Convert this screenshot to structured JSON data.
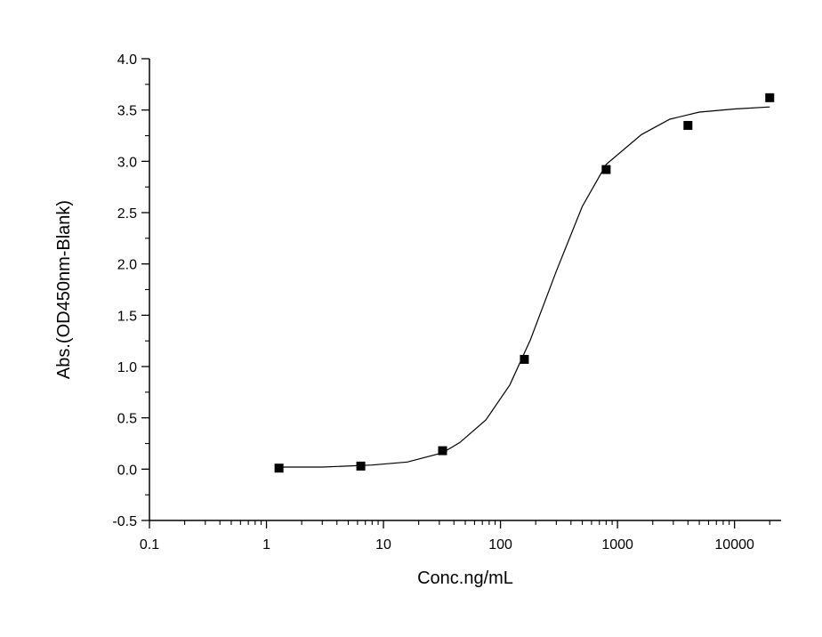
{
  "chart_data": {
    "type": "scatter",
    "xlabel": "Conc.ng/mL",
    "ylabel": "Abs.(OD450nm-Blank)",
    "x_scale": "log",
    "xlim": [
      0.1,
      25000
    ],
    "ylim": [
      -0.5,
      4.0
    ],
    "x_ticks": [
      0.1,
      1,
      10,
      100,
      1000,
      10000
    ],
    "x_tick_labels": [
      "0.1",
      "1",
      "10",
      "100",
      "1000",
      "10000"
    ],
    "y_ticks": [
      -0.5,
      0.0,
      0.5,
      1.0,
      1.5,
      2.0,
      2.5,
      3.0,
      3.5,
      4.0
    ],
    "y_tick_labels": [
      "-0.5",
      "0.0",
      "0.5",
      "1.0",
      "1.5",
      "2.0",
      "2.5",
      "3.0",
      "3.5",
      "4.0"
    ],
    "grid": false,
    "legend": "none",
    "series": [
      {
        "marker": "square",
        "color": "#000000",
        "points": [
          {
            "x": 1.28,
            "y": 0.01
          },
          {
            "x": 6.4,
            "y": 0.03
          },
          {
            "x": 32,
            "y": 0.18
          },
          {
            "x": 160,
            "y": 1.07
          },
          {
            "x": 800,
            "y": 2.92
          },
          {
            "x": 4000,
            "y": 3.35
          },
          {
            "x": 20000,
            "y": 3.62
          }
        ]
      },
      {
        "kind": "fit-line",
        "color": "#000000",
        "points": [
          {
            "x": 1.28,
            "y": 0.02
          },
          {
            "x": 3,
            "y": 0.02
          },
          {
            "x": 8,
            "y": 0.04
          },
          {
            "x": 16,
            "y": 0.07
          },
          {
            "x": 32,
            "y": 0.16
          },
          {
            "x": 45,
            "y": 0.26
          },
          {
            "x": 75,
            "y": 0.48
          },
          {
            "x": 120,
            "y": 0.82
          },
          {
            "x": 180,
            "y": 1.26
          },
          {
            "x": 300,
            "y": 1.93
          },
          {
            "x": 500,
            "y": 2.56
          },
          {
            "x": 800,
            "y": 2.97
          },
          {
            "x": 1600,
            "y": 3.26
          },
          {
            "x": 2800,
            "y": 3.41
          },
          {
            "x": 5000,
            "y": 3.48
          },
          {
            "x": 10000,
            "y": 3.51
          },
          {
            "x": 20000,
            "y": 3.53
          }
        ]
      }
    ]
  }
}
